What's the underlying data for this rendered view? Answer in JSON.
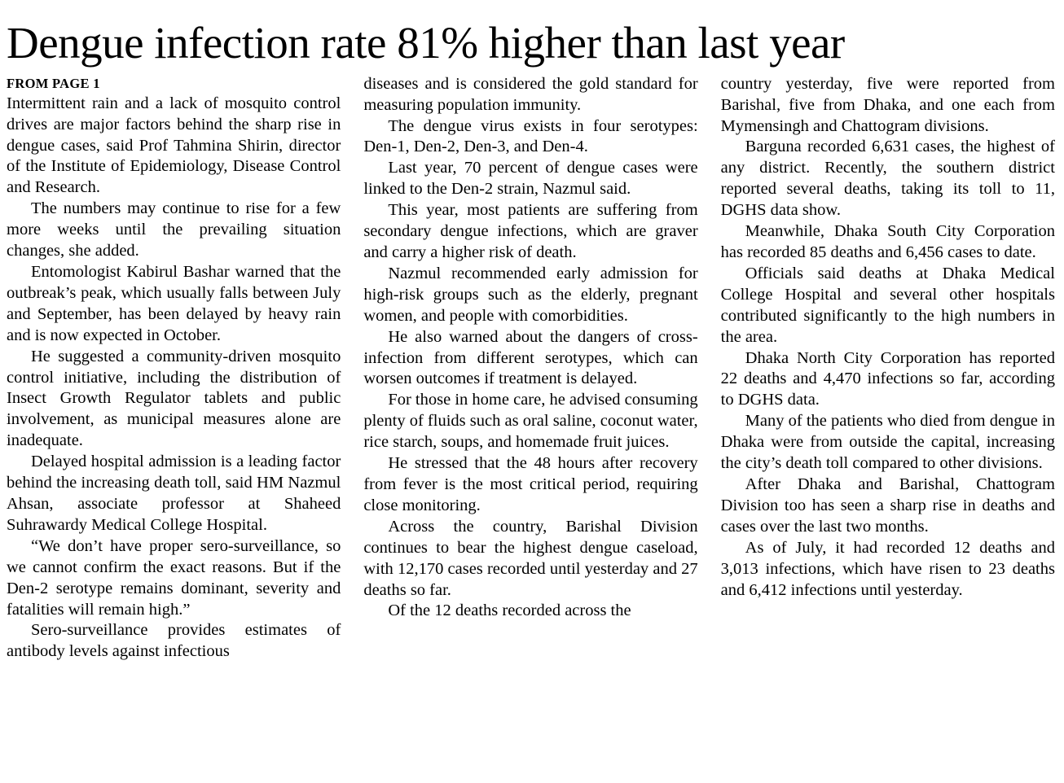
{
  "article": {
    "headline": "Dengue infection rate 81% higher than last year",
    "kicker": "FROM PAGE 1",
    "columns": [
      {
        "paragraphs": [
          "Intermittent rain and a lack of mosquito control drives are major factors behind the sharp rise in dengue cases, said Prof Tahmina Shirin, director of the Institute of Epidemiology, Disease Control and Research.",
          "The numbers may continue to rise for a few more weeks until the prevailing situation changes, she added.",
          "Entomologist Kabirul Bashar warned that the outbreak’s peak, which usually falls between July and September, has been delayed by heavy rain and is now expected in October.",
          "He suggested a community-driven mosquito control initiative, including the distribution of Insect Growth Regulator tablets and public involvement, as municipal measures alone are inadequate.",
          "Delayed hospital admission is a leading factor behind the increasing death toll, said HM Nazmul Ahsan, associate professor at Shaheed Suhrawardy Medical College Hospital.",
          "“We don’t have proper sero-surveillance, so we cannot confirm the exact reasons. But if the Den-2 serotype remains dominant, severity and fatalities will remain high.”",
          "Sero-surveillance provides estimates of antibody levels against infectious"
        ]
      },
      {
        "paragraphs": [
          "diseases and is considered the gold standard for measuring population immunity.",
          "The dengue virus exists in four serotypes: Den-1, Den-2, Den-3, and Den-4.",
          "Last year, 70 percent of dengue cases were linked to the Den-2 strain, Nazmul said.",
          "This year, most patients are suffering from secondary dengue infections, which are graver and carry a higher risk of death.",
          "Nazmul recommended early admission for high-risk groups such as the elderly, pregnant women, and people with comorbidities.",
          "He also warned about the dangers of cross-infection from different serotypes, which can worsen outcomes if treatment is delayed.",
          "For those in home care, he advised consuming plenty of fluids such as oral saline, coconut water, rice starch, soups, and homemade fruit juices.",
          "He stressed that the 48 hours after recovery from fever is the most critical period, requiring close monitoring.",
          "Across the country, Barishal Division continues to bear the highest dengue caseload, with 12,170 cases recorded until yesterday and 27 deaths so far.",
          "Of the 12 deaths recorded across the"
        ]
      },
      {
        "paragraphs": [
          "country yesterday, five were reported from Barishal, five from Dhaka, and one each from Mymensingh and Chattogram divisions.",
          "Barguna recorded 6,631 cases, the highest of any district. Recently, the southern district reported several deaths, taking its toll to 11, DGHS data show.",
          "Meanwhile, Dhaka South City Corporation has recorded 85 deaths and 6,456 cases to date.",
          "Officials said deaths at Dhaka Medical College Hospital and several other hospitals contributed significantly to the high numbers in the area.",
          "Dhaka North City Corporation has reported 22 deaths and 4,470 infections so far, according to DGHS data.",
          "Many of the patients who died from dengue in Dhaka were from outside the capital, increasing the city’s death toll compared to other divisions.",
          "After Dhaka and Barishal, Chattogram Division too has seen a sharp rise in deaths and cases over the last two months.",
          "As of July, it had recorded 12 deaths and 3,013 infections, which have risen to 23 deaths and 6,412 infections until yesterday."
        ]
      }
    ]
  }
}
